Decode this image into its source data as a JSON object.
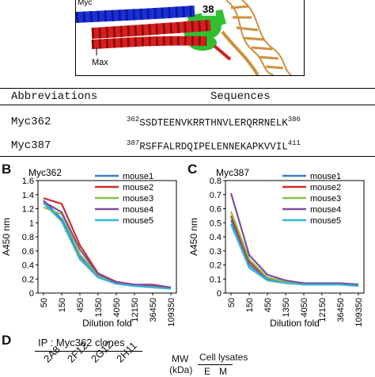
{
  "structure": {
    "labels": {
      "myc": "Myc",
      "max": "Max",
      "site": "38"
    }
  },
  "table": {
    "headers": {
      "abbr": "Abbreviations",
      "seq": "Sequences"
    },
    "rows": [
      {
        "abbr": "Myc362",
        "start": "362",
        "seq": "SSDTEENVKRRTHNVLERQRRNELK",
        "end": "386"
      },
      {
        "abbr": "Myc387",
        "start": "387",
        "seq": "RSFFALRDQIPELENNEKAPKVVIL",
        "end": "411"
      }
    ]
  },
  "panels": {
    "b": {
      "letter": "B",
      "title": "Myc362"
    },
    "c": {
      "letter": "C",
      "title": "Myc387"
    },
    "d": {
      "letter": "D",
      "ip_label": "IP : Myc362 clones",
      "clones": [
        "2A8",
        "2F12",
        "2G12",
        "2H11"
      ],
      "mw_label": "MW",
      "kda_label": "(kDa)",
      "lysates_label": "Cell lysates",
      "lanes": [
        "E",
        "M"
      ]
    }
  },
  "colors": {
    "mouse1": "#3e7ec0",
    "mouse2": "#c8302b",
    "mouse3": "#8cc04a",
    "mouse4": "#7b4fa0",
    "mouse5": "#38b4d6"
  },
  "chart_data": [
    {
      "type": "line",
      "title": "Myc362",
      "xlabel": "Dilution fold",
      "ylabel": "A450 nm",
      "categories": [
        "50",
        "150",
        "450",
        "1350",
        "4050",
        "12150",
        "36450",
        "109350"
      ],
      "ylim": [
        0,
        1.6
      ],
      "yticks": [
        "0",
        "0.2",
        "0.4",
        "0.6",
        "0.8",
        "1",
        "1.2",
        "1.4",
        "1.6"
      ],
      "series": [
        {
          "name": "mouse1",
          "values": [
            1.32,
            1.05,
            0.52,
            0.25,
            0.15,
            0.11,
            0.09,
            0.07
          ]
        },
        {
          "name": "mouse2",
          "values": [
            1.35,
            1.27,
            0.68,
            0.28,
            0.16,
            0.12,
            0.12,
            0.08
          ]
        },
        {
          "name": "mouse3",
          "values": [
            1.22,
            1.12,
            0.55,
            0.26,
            0.14,
            0.11,
            0.1,
            0.07
          ]
        },
        {
          "name": "mouse4",
          "values": [
            1.3,
            1.15,
            0.62,
            0.27,
            0.15,
            0.12,
            0.11,
            0.08
          ]
        },
        {
          "name": "mouse5",
          "values": [
            1.28,
            1.02,
            0.48,
            0.22,
            0.13,
            0.1,
            0.08,
            0.06
          ]
        }
      ],
      "legend": "top-right"
    },
    {
      "type": "line",
      "title": "Myc387",
      "xlabel": "Dilution fold",
      "ylabel": "A450 nm",
      "categories": [
        "50",
        "150",
        "450",
        "1350",
        "4050",
        "12150",
        "36450",
        "109350"
      ],
      "ylim": [
        0,
        0.8
      ],
      "yticks": [
        "0",
        "0.1",
        "0.2",
        "0.3",
        "0.4",
        "0.5",
        "0.6",
        "0.7",
        "0.8"
      ],
      "series": [
        {
          "name": "mouse1",
          "values": [
            0.52,
            0.2,
            0.1,
            0.08,
            0.07,
            0.06,
            0.06,
            0.06
          ]
        },
        {
          "name": "mouse2",
          "values": [
            0.55,
            0.22,
            0.11,
            0.08,
            0.07,
            0.07,
            0.07,
            0.06
          ]
        },
        {
          "name": "mouse3",
          "values": [
            0.58,
            0.24,
            0.11,
            0.08,
            0.07,
            0.06,
            0.06,
            0.06
          ]
        },
        {
          "name": "mouse4",
          "values": [
            0.71,
            0.27,
            0.13,
            0.09,
            0.07,
            0.07,
            0.07,
            0.06
          ]
        },
        {
          "name": "mouse5",
          "values": [
            0.49,
            0.18,
            0.09,
            0.07,
            0.06,
            0.06,
            0.06,
            0.05
          ]
        }
      ],
      "legend": "top-right"
    }
  ]
}
